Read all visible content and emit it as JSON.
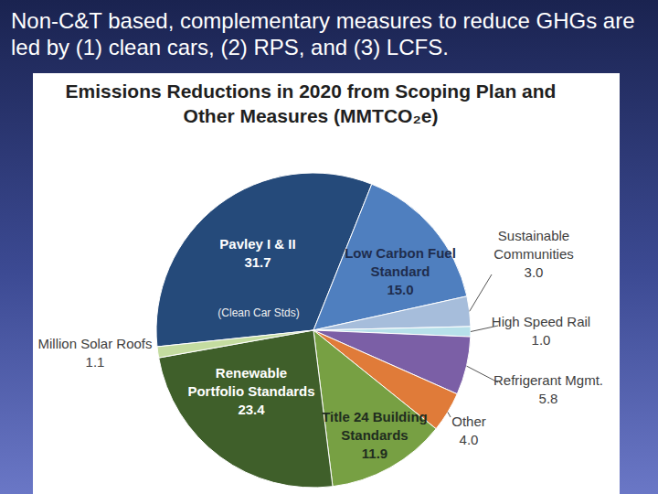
{
  "slide_title": "Non-C&T based, complementary measures to reduce GHGs are led by (1) clean cars, (2) RPS, and (3) LCFS.",
  "chart_data": {
    "type": "pie",
    "title": "Emissions Reductions in 2020 from Scoping Plan and Other Measures (MMTCO₂e)",
    "categories": [
      "Pavley I & II",
      "Low Carbon Fuel Standard",
      "Sustainable Communities",
      "High Speed Rail",
      "Refrigerant Mgmt.",
      "Other",
      "Title 24 Building Standards",
      "Renewable Portfolio Standards",
      "Million Solar Roofs"
    ],
    "values": [
      31.7,
      15.0,
      3.0,
      1.0,
      5.8,
      4.0,
      11.9,
      23.4,
      1.1
    ],
    "value_labels": [
      "31.7",
      "15.0",
      "3.0",
      "1.0",
      "5.8",
      "4.0",
      "11.9",
      "23.4",
      "1.1"
    ],
    "colors": [
      "#254a7a",
      "#4f7fbf",
      "#a6bddb",
      "#b7e0ea",
      "#7b5fa6",
      "#e07b39",
      "#77a043",
      "#3f5f2a",
      "#c4dca0"
    ],
    "data_labels": true,
    "annotations": [
      "(Clean Car Stds)"
    ]
  }
}
